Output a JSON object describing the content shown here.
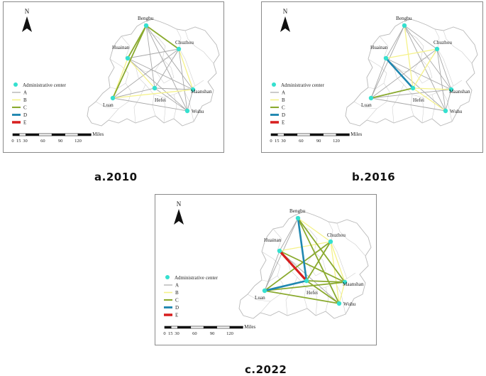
{
  "north_label": "N",
  "legend": {
    "center_label": "Administrative center",
    "classes": [
      {
        "label": "A",
        "color": "#a8a8a8"
      },
      {
        "label": "B",
        "color": "#f5f28a"
      },
      {
        "label": "C",
        "color": "#8aaa2e"
      },
      {
        "label": "D",
        "color": "#1f87b0"
      },
      {
        "label": "E",
        "color": "#d71e1e"
      }
    ]
  },
  "scalebar": {
    "unit": "Miles",
    "ticks": [
      "0",
      "15",
      "30",
      "60",
      "90",
      "120"
    ]
  },
  "center_color": "#35e0cf",
  "cities": [
    "Bengbu",
    "Chuzhou",
    "Huainan",
    "Hefei",
    "Maanshan",
    "Luan",
    "Wuhu"
  ],
  "panels": [
    {
      "caption": "a.2010",
      "connections": [
        {
          "from": "Bengbu",
          "to": "Huainan",
          "class": "C"
        },
        {
          "from": "Bengbu",
          "to": "Chuzhou",
          "class": "C"
        },
        {
          "from": "Bengbu",
          "to": "Luan",
          "class": "C"
        },
        {
          "from": "Bengbu",
          "to": "Hefei",
          "class": "A"
        },
        {
          "from": "Bengbu",
          "to": "Maanshan",
          "class": "A"
        },
        {
          "from": "Bengbu",
          "to": "Wuhu",
          "class": "A"
        },
        {
          "from": "Huainan",
          "to": "Luan",
          "class": "B"
        },
        {
          "from": "Huainan",
          "to": "Hefei",
          "class": "B"
        },
        {
          "from": "Huainan",
          "to": "Chuzhou",
          "class": "A"
        },
        {
          "from": "Huainan",
          "to": "Maanshan",
          "class": "A"
        },
        {
          "from": "Huainan",
          "to": "Wuhu",
          "class": "A"
        },
        {
          "from": "Chuzhou",
          "to": "Maanshan",
          "class": "B"
        },
        {
          "from": "Chuzhou",
          "to": "Luan",
          "class": "A"
        },
        {
          "from": "Chuzhou",
          "to": "Hefei",
          "class": "A"
        },
        {
          "from": "Chuzhou",
          "to": "Wuhu",
          "class": "A"
        },
        {
          "from": "Hefei",
          "to": "Maanshan",
          "class": "A"
        },
        {
          "from": "Hefei",
          "to": "Wuhu",
          "class": "A"
        },
        {
          "from": "Luan",
          "to": "Hefei",
          "class": "A"
        },
        {
          "from": "Luan",
          "to": "Maanshan",
          "class": "B"
        },
        {
          "from": "Luan",
          "to": "Wuhu",
          "class": "A"
        },
        {
          "from": "Maanshan",
          "to": "Wuhu",
          "class": "A"
        }
      ]
    },
    {
      "caption": "b.2016",
      "connections": [
        {
          "from": "Huainan",
          "to": "Hefei",
          "class": "D"
        },
        {
          "from": "Luan",
          "to": "Hefei",
          "class": "C"
        },
        {
          "from": "Bengbu",
          "to": "Hefei",
          "class": "B"
        },
        {
          "from": "Chuzhou",
          "to": "Hefei",
          "class": "B"
        },
        {
          "from": "Hefei",
          "to": "Maanshan",
          "class": "B"
        },
        {
          "from": "Hefei",
          "to": "Wuhu",
          "class": "B"
        },
        {
          "from": "Huainan",
          "to": "Chuzhou",
          "class": "B"
        },
        {
          "from": "Bengbu",
          "to": "Huainan",
          "class": "A"
        },
        {
          "from": "Bengbu",
          "to": "Chuzhou",
          "class": "A"
        },
        {
          "from": "Bengbu",
          "to": "Luan",
          "class": "A"
        },
        {
          "from": "Bengbu",
          "to": "Maanshan",
          "class": "A"
        },
        {
          "from": "Bengbu",
          "to": "Wuhu",
          "class": "A"
        },
        {
          "from": "Huainan",
          "to": "Luan",
          "class": "A"
        },
        {
          "from": "Huainan",
          "to": "Maanshan",
          "class": "A"
        },
        {
          "from": "Huainan",
          "to": "Wuhu",
          "class": "A"
        },
        {
          "from": "Chuzhou",
          "to": "Maanshan",
          "class": "A"
        },
        {
          "from": "Chuzhou",
          "to": "Luan",
          "class": "A"
        },
        {
          "from": "Chuzhou",
          "to": "Wuhu",
          "class": "A"
        },
        {
          "from": "Luan",
          "to": "Maanshan",
          "class": "A"
        },
        {
          "from": "Luan",
          "to": "Wuhu",
          "class": "A"
        },
        {
          "from": "Maanshan",
          "to": "Wuhu",
          "class": "A"
        }
      ]
    },
    {
      "caption": "c.2022",
      "connections": [
        {
          "from": "Huainan",
          "to": "Hefei",
          "class": "E"
        },
        {
          "from": "Bengbu",
          "to": "Hefei",
          "class": "D"
        },
        {
          "from": "Luan",
          "to": "Hefei",
          "class": "D"
        },
        {
          "from": "Bengbu",
          "to": "Maanshan",
          "class": "C"
        },
        {
          "from": "Bengbu",
          "to": "Wuhu",
          "class": "C"
        },
        {
          "from": "Chuzhou",
          "to": "Hefei",
          "class": "C"
        },
        {
          "from": "Hefei",
          "to": "Maanshan",
          "class": "C"
        },
        {
          "from": "Hefei",
          "to": "Wuhu",
          "class": "C"
        },
        {
          "from": "Luan",
          "to": "Maanshan",
          "class": "C"
        },
        {
          "from": "Luan",
          "to": "Wuhu",
          "class": "C"
        },
        {
          "from": "Chuzhou",
          "to": "Luan",
          "class": "C"
        },
        {
          "from": "Huainan",
          "to": "Maanshan",
          "class": "C"
        },
        {
          "from": "Chuzhou",
          "to": "Maanshan",
          "class": "B"
        },
        {
          "from": "Huainan",
          "to": "Chuzhou",
          "class": "B"
        },
        {
          "from": "Bengbu",
          "to": "Chuzhou",
          "class": "B"
        },
        {
          "from": "Chuzhou",
          "to": "Wuhu",
          "class": "B"
        },
        {
          "from": "Maanshan",
          "to": "Wuhu",
          "class": "B"
        },
        {
          "from": "Bengbu",
          "to": "Huainan",
          "class": "A"
        },
        {
          "from": "Bengbu",
          "to": "Luan",
          "class": "A"
        },
        {
          "from": "Huainan",
          "to": "Luan",
          "class": "A"
        },
        {
          "from": "Huainan",
          "to": "Wuhu",
          "class": "A"
        }
      ]
    }
  ]
}
